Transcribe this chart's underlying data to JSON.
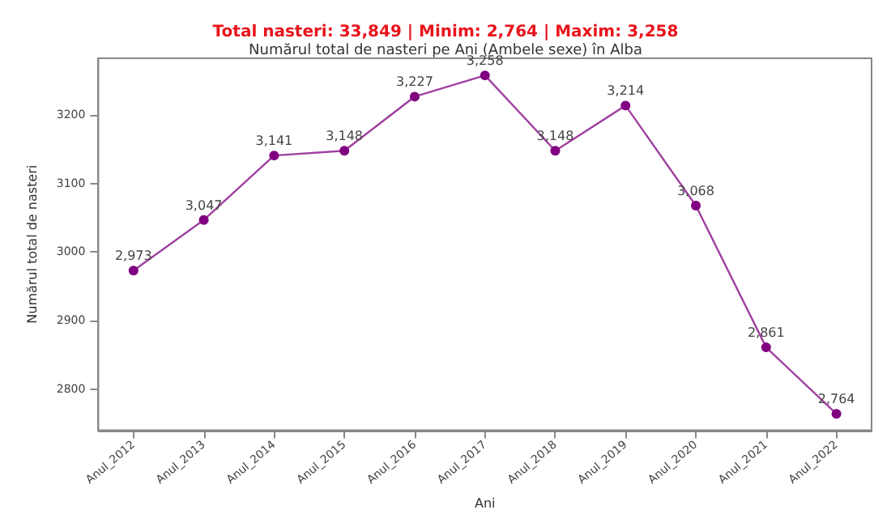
{
  "chart_data": {
    "type": "line",
    "title": "Total nasteri: 33,849 | Minim: 2,764 | Maxim: 3,258",
    "subtitle": "Numărul total de nasteri pe Ani (Ambele sexe) în Alba",
    "xlabel": "Ani",
    "ylabel": "Numărul total de nasteri",
    "categories": [
      "Anul_2012",
      "Anul_2013",
      "Anul_2014",
      "Anul_2015",
      "Anul_2016",
      "Anul_2017",
      "Anul_2018",
      "Anul_2019",
      "Anul_2020",
      "Anul_2021",
      "Anul_2022"
    ],
    "series": [
      {
        "color": "#800080",
        "values": [
          2973,
          3047,
          3141,
          3148,
          3227,
          3258,
          3148,
          3214,
          3068,
          2861,
          2764
        ],
        "value_labels": [
          "2,973",
          "3,047",
          "3,141",
          "3,148",
          "3,227",
          "3,258",
          "3,148",
          "3,214",
          "3,068",
          "2,861",
          "2,764"
        ]
      }
    ],
    "ylim": [
      2740,
      3283
    ],
    "yticks": [
      2800,
      2900,
      3000,
      3100,
      3200
    ],
    "grid": false,
    "marker": "circle",
    "line_style": "solid"
  }
}
